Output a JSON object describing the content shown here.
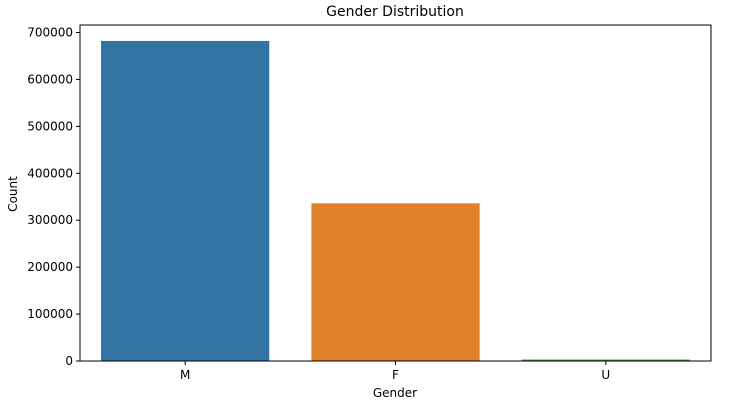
{
  "chart_data": {
    "type": "bar",
    "title": "Gender Distribution",
    "xlabel": "Gender",
    "ylabel": "Count",
    "categories": [
      "M",
      "F",
      "U"
    ],
    "values": [
      682000,
      336000,
      3000
    ],
    "colors": [
      "#3274a1",
      "#e1812c",
      "#3a923a"
    ],
    "ylim": [
      0,
      716000
    ],
    "yticks": [
      0,
      100000,
      200000,
      300000,
      400000,
      500000,
      600000,
      700000
    ],
    "ytick_labels": [
      "0",
      "100000",
      "200000",
      "300000",
      "400000",
      "500000",
      "600000",
      "700000"
    ],
    "grid": false,
    "legend": "none"
  }
}
